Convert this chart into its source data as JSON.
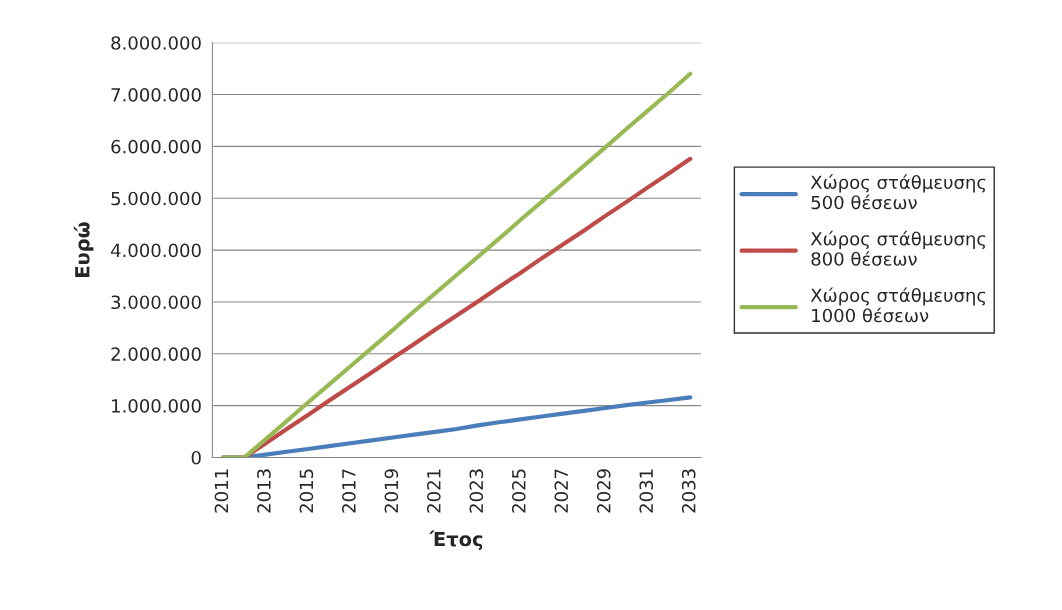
{
  "chart_data": {
    "type": "line",
    "xlabel": "Έτος",
    "ylabel": "Ευρώ",
    "categories": [
      "2011",
      null,
      "2013",
      null,
      "2015",
      null,
      "2017",
      null,
      "2019",
      null,
      "2021",
      null,
      "2023",
      null,
      "2025",
      null,
      "2027",
      null,
      "2029",
      null,
      "2031",
      null,
      "2033"
    ],
    "series": [
      {
        "name": "Χώρος στάθμευσης\n500 θέσεων",
        "color": "#4a7ebb",
        "values": [
          0,
          0,
          55000,
          110000,
          165000,
          220000,
          275000,
          330000,
          385000,
          440000,
          495000,
          550000,
          620000,
          680000,
          735000,
          790000,
          845000,
          900000,
          955000,
          1010000,
          1060000,
          1110000,
          1160000
        ]
      },
      {
        "name": "Χώρος στάθμευσης\n800 θέσεων",
        "color": "#be4b48",
        "values": [
          0,
          0,
          270000,
          550000,
          820000,
          1100000,
          1370000,
          1640000,
          1920000,
          2190000,
          2470000,
          2740000,
          3010000,
          3290000,
          3560000,
          3840000,
          4110000,
          4380000,
          4660000,
          4930000,
          5210000,
          5480000,
          5760000
        ]
      },
      {
        "name": "Χώρος στάθμευσης\n1000 θέσεων",
        "color": "#98b954",
        "values": [
          0,
          0,
          350000,
          700000,
          1060000,
          1410000,
          1760000,
          2110000,
          2460000,
          2820000,
          3170000,
          3520000,
          3870000,
          4220000,
          4580000,
          4930000,
          5280000,
          5630000,
          5980000,
          6340000,
          6690000,
          7040000,
          7400000
        ]
      }
    ],
    "ylim": [
      0,
      8000000
    ],
    "yticks": [
      0,
      {
        "value": 1000000,
        "label": "1.000.000"
      },
      {
        "value": 2000000,
        "label": "2.000.000"
      },
      {
        "value": 3000000,
        "label": "3.000.000"
      },
      {
        "value": 4000000,
        "label": "4.000.000"
      },
      {
        "value": 5000000,
        "label": "5.000.000"
      },
      {
        "value": 6000000,
        "label": "6.000.000"
      },
      {
        "value": 7000000,
        "label": "7.000.000"
      },
      {
        "value": 8000000,
        "label": "8.000.000"
      }
    ],
    "grid": "y",
    "legend": "right",
    "marker": "none",
    "line_style": "solid"
  }
}
